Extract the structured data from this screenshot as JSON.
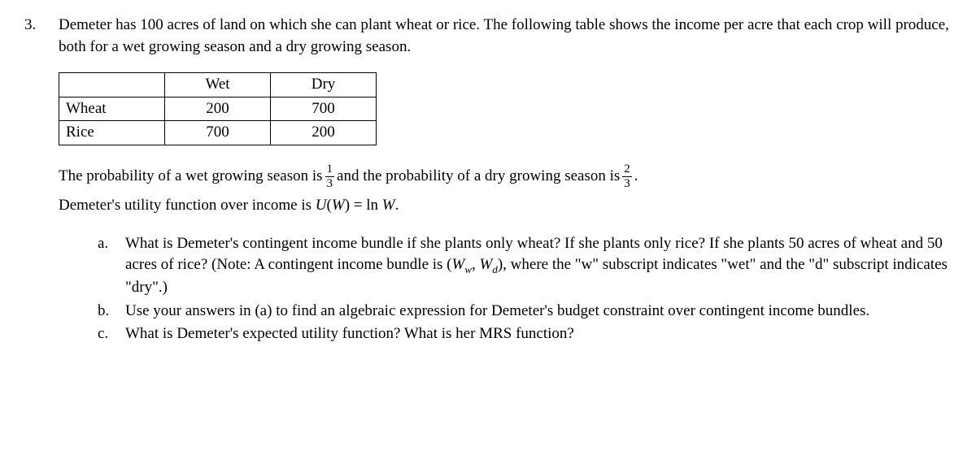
{
  "question": {
    "number": "3.",
    "intro": "Demeter has 100 acres of land on which she can plant wheat or rice.  The following table shows the income per acre that each crop will produce, both for a wet growing season and a dry growing season.",
    "table": {
      "headers": [
        "",
        "Wet",
        "Dry"
      ],
      "rows": [
        {
          "label": "Wheat",
          "wet": "200",
          "dry": "700"
        },
        {
          "label": "Rice",
          "wet": "700",
          "dry": "200"
        }
      ]
    },
    "prob_pre": "The probability of a wet growing season is ",
    "frac1_num": "1",
    "frac1_den": "3",
    "prob_mid": " and the probability of a dry growing season is ",
    "frac2_num": "2",
    "frac2_den": "3",
    "prob_post": ".",
    "utility_pre": "Demeter's utility function over income is ",
    "utility_fn_U": "U",
    "utility_fn_paren_open": "(",
    "utility_fn_W": "W",
    "utility_fn_paren_close": ") = ln ",
    "utility_fn_W2": "W",
    "utility_fn_end": ".",
    "parts": {
      "a": {
        "letter": "a.",
        "text_pre": "What is Demeter's contingent income bundle if she plants only wheat? If she plants only rice?  If she plants 50 acres of wheat and 50 acres of rice?  (Note: A contingent income bundle is (",
        "W1": "W",
        "sub1": "w",
        "comma": ", ",
        "W2": "W",
        "sub2": "d",
        "text_post": "), where the \"w\" subscript indicates \"wet\" and the \"d\" subscript indicates \"dry\".)"
      },
      "b": {
        "letter": "b.",
        "text": "Use your answers in (a) to find an algebraic expression for Demeter's budget constraint over contingent income bundles."
      },
      "c": {
        "letter": "c.",
        "text": "What is Demeter's expected utility function?  What is her MRS function?"
      }
    }
  }
}
